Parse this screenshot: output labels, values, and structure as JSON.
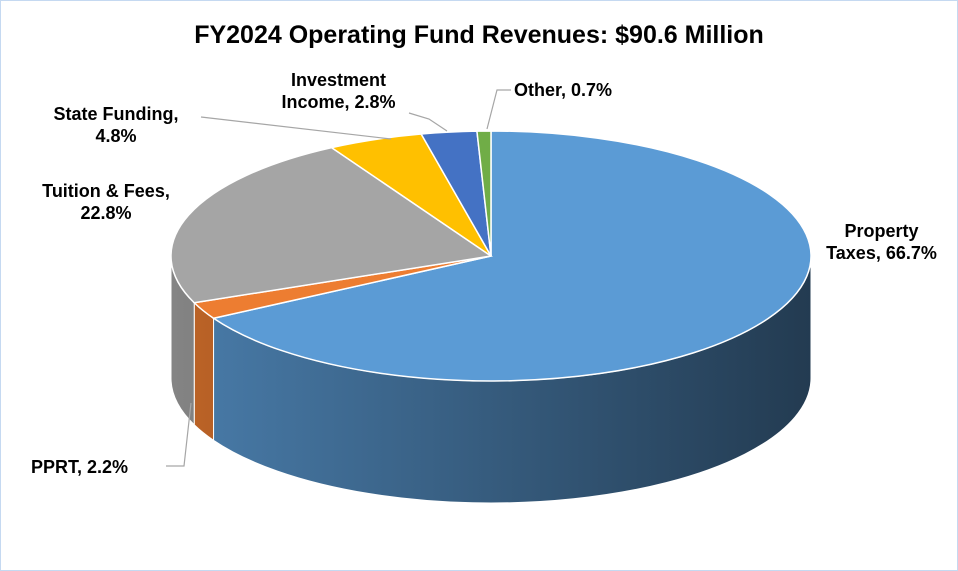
{
  "chart_data": {
    "type": "pie",
    "style": "3d",
    "title": "FY2024 Operating Fund Revenues: $90.6 Million",
    "categories": [
      "Property Taxes",
      "PPRT",
      "Tuition & Fees",
      "State Funding",
      "Investment Income",
      "Other"
    ],
    "values": [
      66.7,
      2.2,
      22.8,
      4.8,
      2.8,
      0.7
    ],
    "value_labels": [
      "Property Taxes, 66.7%",
      "PPRT, 2.2%",
      "Tuition & Fees, 22.8%",
      "State Funding, 4.8%",
      "Investment Income, 2.8%",
      "Other, 0.7%"
    ],
    "colors": [
      "#5b9bd5",
      "#ed7d31",
      "#a5a5a5",
      "#ffc000",
      "#4472c4",
      "#70ad47"
    ]
  }
}
